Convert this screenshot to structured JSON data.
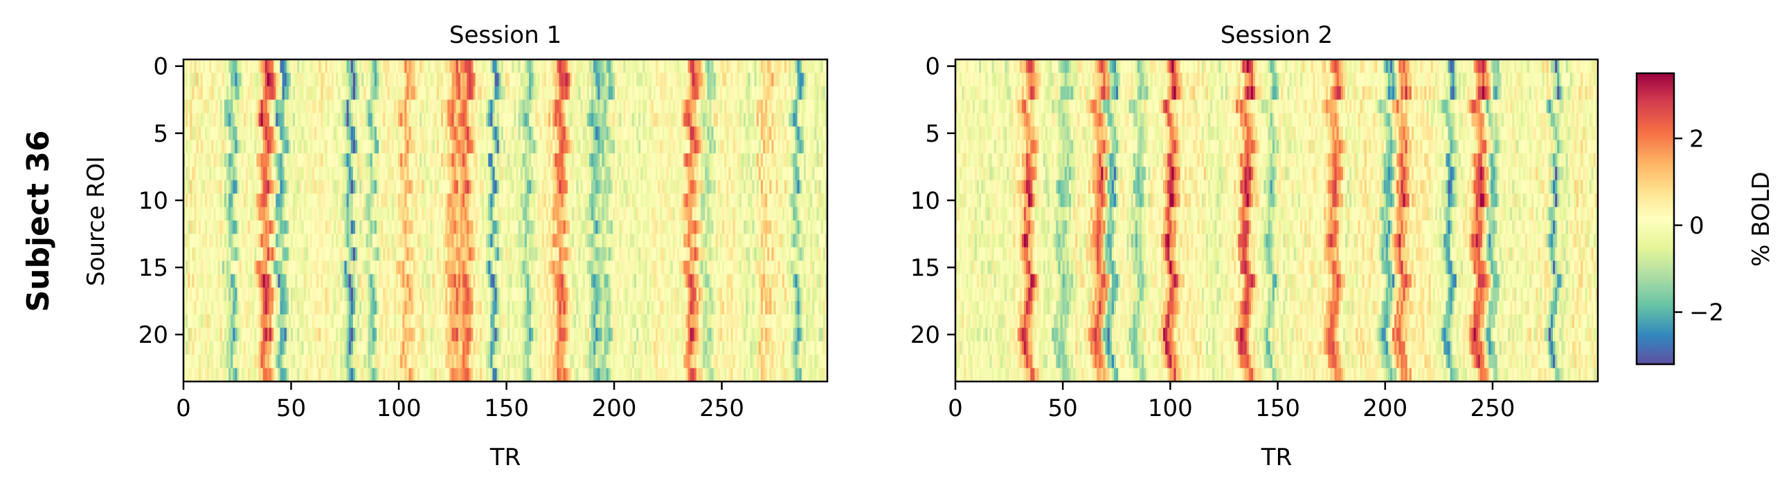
{
  "figure": {
    "row_label": "Subject 36"
  },
  "chart_data": [
    {
      "type": "heatmap",
      "title": "Session 1",
      "xlabel": "TR",
      "ylabel": "Source ROI",
      "n_rows": 24,
      "n_cols": 300,
      "xlim": [
        0,
        299
      ],
      "ylim": [
        23.5,
        -0.5
      ],
      "xticks": [
        0,
        50,
        100,
        150,
        200,
        250
      ],
      "yticks": [
        0,
        5,
        10,
        15,
        20
      ],
      "colormap": "Spectral_r",
      "shared_signal_peaks": [
        {
          "tr": 38,
          "amp": 2.4,
          "width": 3
        },
        {
          "tr": 77,
          "amp": -2.6,
          "width": 2
        },
        {
          "tr": 87,
          "amp": -1.8,
          "width": 2
        },
        {
          "tr": 103,
          "amp": 1.5,
          "width": 3
        },
        {
          "tr": 125,
          "amp": 1.9,
          "width": 3
        },
        {
          "tr": 131,
          "amp": 2.1,
          "width": 3
        },
        {
          "tr": 144,
          "amp": -2.4,
          "width": 2
        },
        {
          "tr": 175,
          "amp": 2.3,
          "width": 3
        },
        {
          "tr": 191,
          "amp": -2.3,
          "width": 2
        },
        {
          "tr": 196,
          "amp": -1.7,
          "width": 2
        },
        {
          "tr": 236,
          "amp": 2.6,
          "width": 3
        },
        {
          "tr": 244,
          "amp": -1.4,
          "width": 3
        },
        {
          "tr": 270,
          "amp": 1.2,
          "width": 3
        },
        {
          "tr": 285,
          "amp": -1.6,
          "width": 2
        },
        {
          "tr": 22,
          "amp": -1.6,
          "width": 2
        },
        {
          "tr": 45,
          "amp": -2.2,
          "width": 2
        },
        {
          "tr": 160,
          "amp": -1.2,
          "width": 3
        }
      ]
    },
    {
      "type": "heatmap",
      "title": "Session 2",
      "xlabel": "TR",
      "ylabel": "",
      "n_rows": 24,
      "n_cols": 300,
      "xlim": [
        0,
        299
      ],
      "ylim": [
        23.5,
        -0.5
      ],
      "xticks": [
        0,
        50,
        100,
        150,
        200,
        250
      ],
      "yticks": [
        0,
        5,
        10,
        15,
        20
      ],
      "colormap": "Spectral_r",
      "shared_signal_peaks": [
        {
          "tr": 33,
          "amp": 2.3,
          "width": 3
        },
        {
          "tr": 67,
          "amp": 2.4,
          "width": 3
        },
        {
          "tr": 72,
          "amp": -2.2,
          "width": 2
        },
        {
          "tr": 100,
          "amp": 2.9,
          "width": 3
        },
        {
          "tr": 135,
          "amp": 2.8,
          "width": 3
        },
        {
          "tr": 146,
          "amp": -1.4,
          "width": 2
        },
        {
          "tr": 176,
          "amp": 2.5,
          "width": 3
        },
        {
          "tr": 201,
          "amp": -2.2,
          "width": 2
        },
        {
          "tr": 208,
          "amp": 2.4,
          "width": 3
        },
        {
          "tr": 230,
          "amp": -2.0,
          "width": 2
        },
        {
          "tr": 244,
          "amp": 2.6,
          "width": 3
        },
        {
          "tr": 250,
          "amp": -1.9,
          "width": 2
        },
        {
          "tr": 279,
          "amp": -2.4,
          "width": 2
        },
        {
          "tr": 50,
          "amp": -1.4,
          "width": 3
        },
        {
          "tr": 85,
          "amp": -1.3,
          "width": 3
        },
        {
          "tr": 290,
          "amp": 0.6,
          "width": 3
        }
      ]
    }
  ],
  "colorbar": {
    "label": "% BOLD",
    "range": [
      -3.2,
      3.5
    ],
    "ticks": [
      2,
      0,
      -2
    ],
    "tick_labels": [
      "2",
      "0",
      "−2"
    ]
  }
}
